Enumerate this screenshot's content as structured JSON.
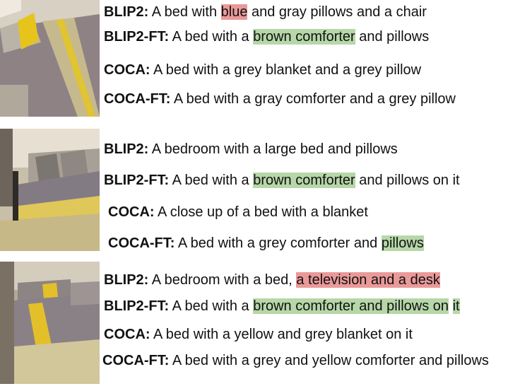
{
  "rows": [
    {
      "image": "bedroom-photo-1",
      "captions": [
        {
          "model": "BLIP2:",
          "pre": " A bed with ",
          "hl": "blue",
          "hl_color": "#ea9999",
          "post": " and gray pillows and a chair"
        },
        {
          "model": "BLIP2-FT:",
          "pre": " A bed with a ",
          "hl": "brown comforter",
          "hl_color": "#b6d7a8",
          "post": " and pillows"
        },
        {
          "model": "COCA:",
          "text": " A bed with a grey blanket and a grey pillow"
        },
        {
          "model": "COCA-FT:",
          "text": " A bed with a gray comforter and a grey pillow"
        }
      ]
    },
    {
      "image": "bedroom-photo-2",
      "captions": [
        {
          "model": "BLIP2:",
          "text": " A bedroom with a large bed and pillows"
        },
        {
          "model": "BLIP2-FT:",
          "pre": " A bed with a ",
          "hl": "brown comforter",
          "hl_color": "#b6d7a8",
          "post": " and pillows on it"
        },
        {
          "model": "COCA:",
          "text": " A close up of a bed with a blanket"
        },
        {
          "model": "COCA-FT:",
          "pre": " A bed with a grey comforter and ",
          "hl": "pillows",
          "hl_color": "#b6d7a8",
          "post": ""
        }
      ]
    },
    {
      "image": "bedroom-photo-3",
      "captions": [
        {
          "model": "BLIP2:",
          "pre": " A bedroom with a bed, ",
          "hl": "a television and a desk",
          "hl_color": "#ea9999",
          "post": ""
        },
        {
          "model": "BLIP2-FT:",
          "pre": " A bed with a ",
          "hl": "brown comforter and pillows on",
          "hl_color": "#b6d7a8",
          "post": " ",
          "hl2": "it",
          "hl2_color": "#b6d7a8"
        },
        {
          "model": "COCA:",
          "text": " A bed with a yellow and grey blanket on it"
        },
        {
          "model": "COCA-FT:",
          "text": " A bed with a grey and yellow comforter and pillows"
        }
      ]
    }
  ]
}
